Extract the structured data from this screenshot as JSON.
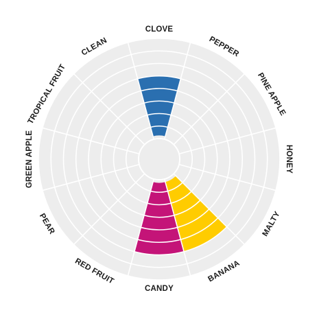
{
  "chart_data": {
    "type": "radial-bar",
    "title": "",
    "levels": 8,
    "categories": [
      "CLOVE",
      "PEPPER",
      "PINE APPLE",
      "HONEY",
      "MALTY",
      "BANANA",
      "CANDY",
      "RED FRUIT",
      "PEAR",
      "GREEN APPLE",
      "TROPICAL FRUIT",
      "CLEAN"
    ],
    "values": [
      5,
      0,
      0,
      0,
      0,
      6,
      6,
      0,
      0,
      0,
      0,
      0
    ],
    "colors": [
      "#2a6fb0",
      null,
      null,
      null,
      null,
      "#ffcc00",
      "#c41478",
      null,
      null,
      null,
      null,
      null
    ],
    "background_color": "#ededed",
    "ring_color": "#ffffff"
  }
}
